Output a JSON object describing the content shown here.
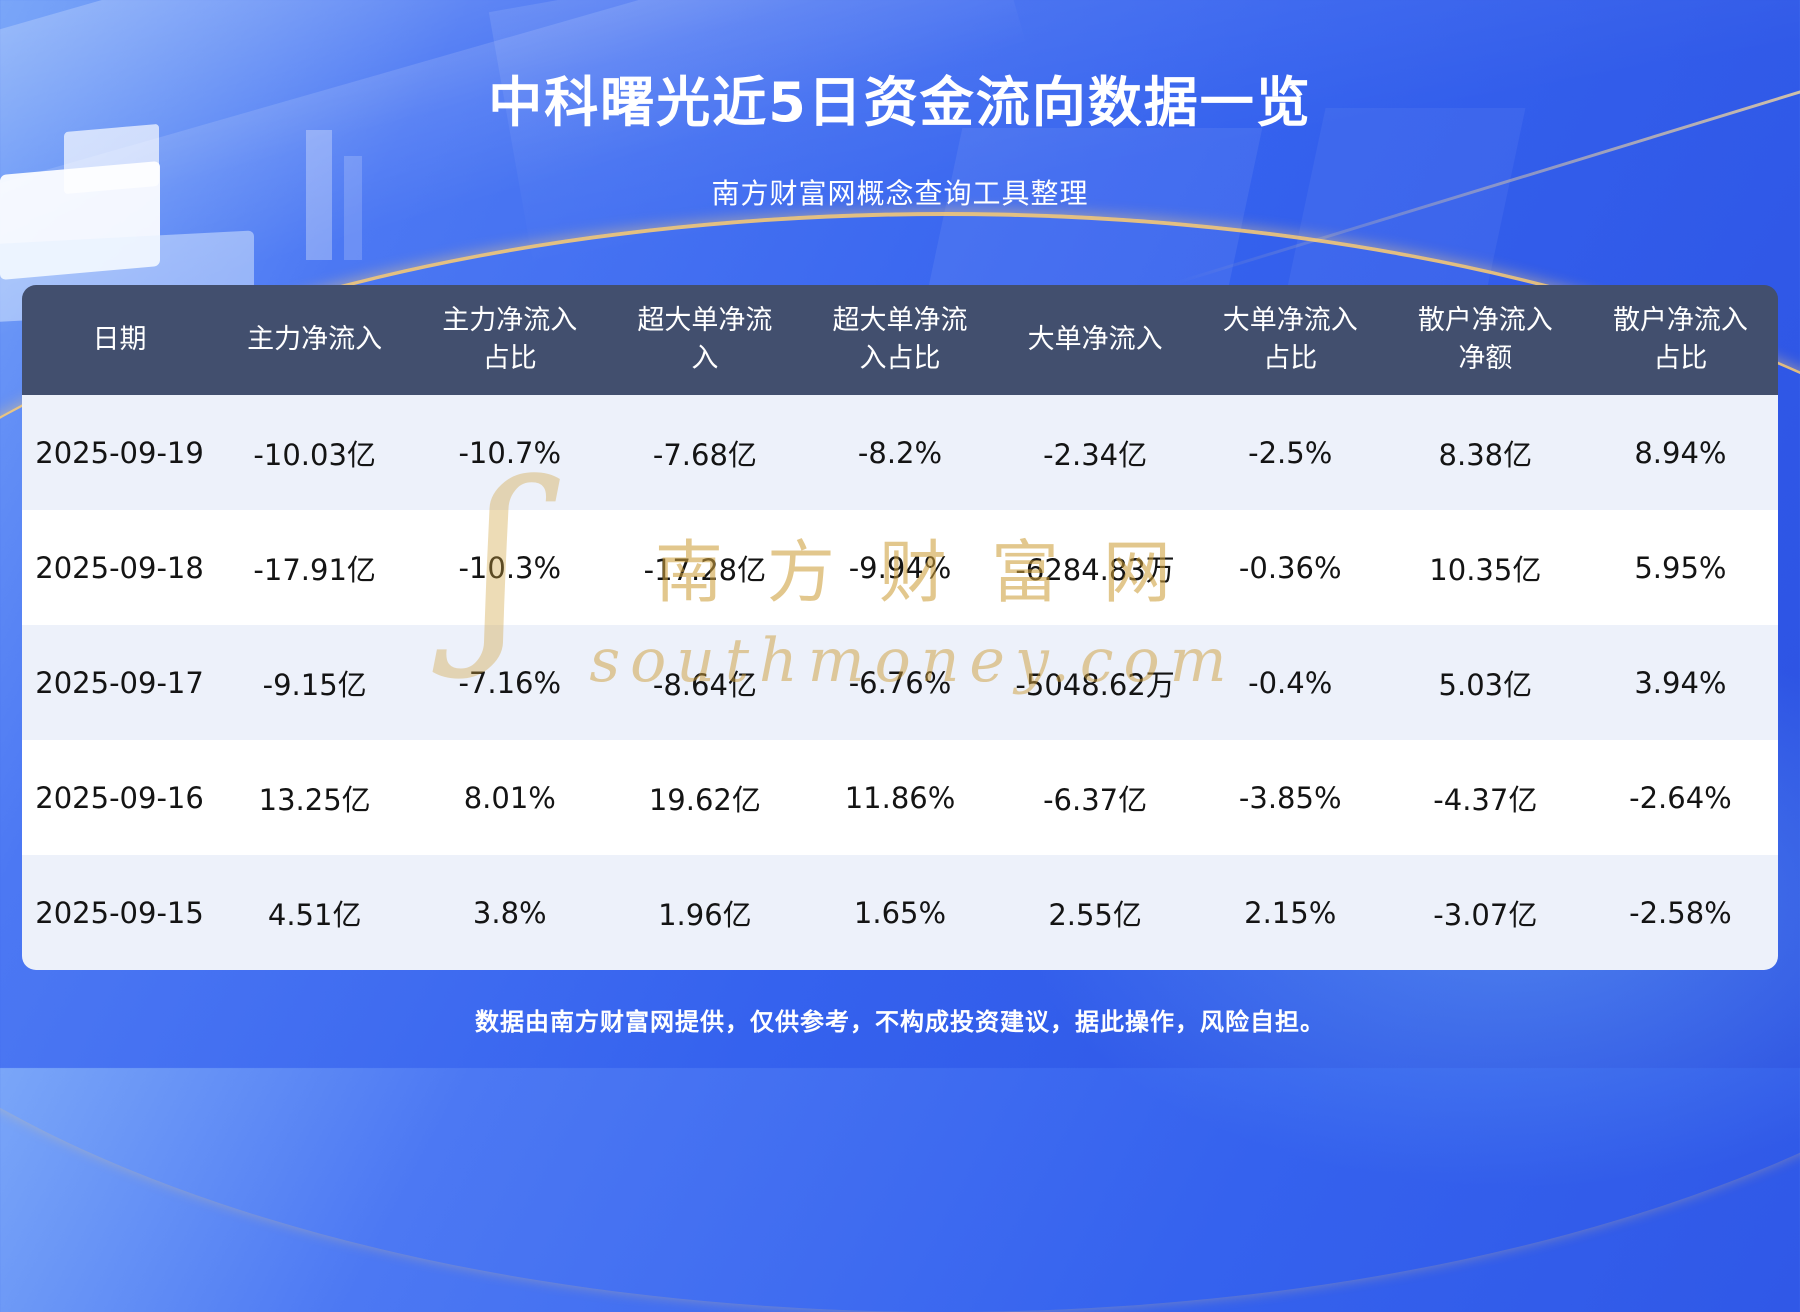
{
  "chart_data": {
    "type": "table",
    "title": "中科曙光近5日资金流向数据一览",
    "subtitle": "南方财富网概念查询工具整理",
    "columns": [
      "日期",
      "主力净流入",
      "主力净流入\n占比",
      "超大单净流\n入",
      "超大单净流\n入占比",
      "大单净流入",
      "大单净流入\n占比",
      "散户净流入\n净额",
      "散户净流入\n占比"
    ],
    "rows": [
      [
        "2025-09-19",
        "-10.03亿",
        "-10.7%",
        "-7.68亿",
        "-8.2%",
        "-2.34亿",
        "-2.5%",
        "8.38亿",
        "8.94%"
      ],
      [
        "2025-09-18",
        "-17.91亿",
        "-10.3%",
        "-17.28亿",
        "-9.94%",
        "-6284.83万",
        "-0.36%",
        "10.35亿",
        "5.95%"
      ],
      [
        "2025-09-17",
        "-9.15亿",
        "-7.16%",
        "-8.64亿",
        "-6.76%",
        "-5048.62万",
        "-0.4%",
        "5.03亿",
        "3.94%"
      ],
      [
        "2025-09-16",
        "13.25亿",
        "8.01%",
        "19.62亿",
        "11.86%",
        "-6.37亿",
        "-3.85%",
        "-4.37亿",
        "-2.64%"
      ],
      [
        "2025-09-15",
        "4.51亿",
        "3.8%",
        "1.96亿",
        "1.65%",
        "2.55亿",
        "2.15%",
        "-3.07亿",
        "-2.58%"
      ]
    ],
    "layout": {
      "header_position": "top",
      "row_striping": true
    }
  },
  "watermark": {
    "swirl": "ʃ",
    "brand": "南方财富网",
    "domain": "southmoney.com"
  },
  "footer": {
    "disclaimer": "数据由南方财富网提供，仅供参考，不构成投资建议，据此操作，风险自担。"
  },
  "colors": {
    "background_blue": "#3562ee",
    "header_bg": "#424f6e",
    "row_alt_bg": "#edf1fa",
    "accent_gold": "#ffce6e",
    "watermark_gold": "#cd9e3a",
    "text_dark": "#141414",
    "text_light": "#ffffff"
  }
}
